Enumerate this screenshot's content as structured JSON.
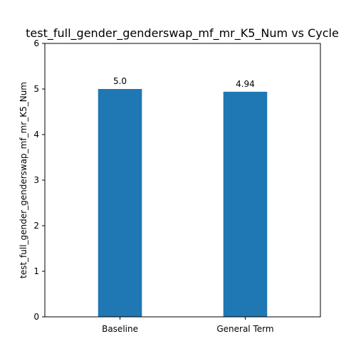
{
  "chart_data": {
    "type": "bar",
    "title": "test_full_gender_genderswap_mf_mr_K5_Num vs Cycle",
    "xlabel": "",
    "ylabel": "test_full_gender_genderswap_mf_mr_K5_Num",
    "categories": [
      "Baseline",
      "General Term"
    ],
    "values": [
      5.0,
      4.94
    ],
    "data_labels": [
      "5.0",
      "4.94"
    ],
    "ylim": [
      0,
      6
    ],
    "yticks": [
      0,
      1,
      2,
      3,
      4,
      5,
      6
    ],
    "ytick_labels": [
      "0",
      "1",
      "2",
      "3",
      "4",
      "5",
      "6"
    ],
    "bar_color": "#1f77b4",
    "grid": false,
    "legend": false
  }
}
